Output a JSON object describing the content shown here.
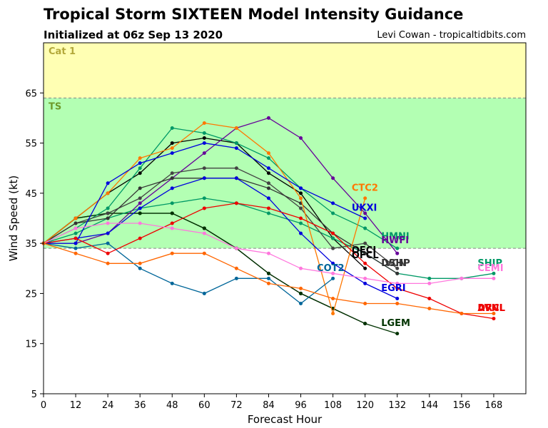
{
  "header": {
    "title": "Tropical Storm SIXTEEN Model Intensity Guidance",
    "subtitle": "Initialized at 06z Sep 13 2020",
    "credit": "Levi Cowan - tropicaltidbits.com"
  },
  "chart_data": {
    "type": "line",
    "title": "Tropical Storm SIXTEEN Model Intensity Guidance",
    "subtitle": "Initialized at 06z Sep 13 2020",
    "xlabel": "Forecast Hour",
    "ylabel": "Wind Speed (kt)",
    "xlim": [
      0,
      180
    ],
    "ylim": [
      5,
      75
    ],
    "xticks": [
      0,
      12,
      24,
      36,
      48,
      60,
      72,
      84,
      96,
      108,
      120,
      132,
      144,
      156,
      168
    ],
    "yticks": [
      5,
      15,
      25,
      35,
      45,
      55,
      65
    ],
    "bands": [
      {
        "from": 34,
        "to": 64,
        "color": "#b3ffb3",
        "label": "TS",
        "label_color": "#6e9a2a"
      },
      {
        "from": 64,
        "to": 75,
        "color": "#ffffb3",
        "label": "Cat 1",
        "label_color": "#b3a83a"
      }
    ],
    "series": [
      {
        "name": "OFCI",
        "color": "#000000",
        "x": [
          0,
          12,
          24,
          36,
          48,
          60,
          72,
          84,
          96,
          108,
          120
        ],
        "y": [
          35,
          40,
          41,
          41,
          41,
          38,
          34,
          29,
          25,
          22,
          19
        ]
      },
      {
        "name": "OFCL",
        "color": "#000000",
        "x": [
          0,
          12,
          24,
          36,
          48,
          60,
          72,
          84,
          96,
          108,
          120
        ],
        "y": [
          35,
          40,
          45,
          49,
          55,
          56,
          55,
          49,
          45,
          36,
          30
        ]
      },
      {
        "name": "LGEM",
        "color": "#003300",
        "x": [
          0,
          12,
          24,
          36,
          48,
          60,
          72,
          84,
          96,
          108,
          120,
          132
        ],
        "y": [
          35,
          40,
          41,
          41,
          41,
          38,
          34,
          29,
          25,
          22,
          19,
          17
        ]
      },
      {
        "name": "SHIP",
        "color": "#009966",
        "x": [
          0,
          12,
          24,
          36,
          48,
          60,
          72,
          84,
          96,
          108,
          120,
          132,
          144,
          156,
          168
        ],
        "y": [
          35,
          37,
          40,
          42,
          43,
          44,
          43,
          41,
          39,
          36,
          33,
          29,
          28,
          28,
          29
        ]
      },
      {
        "name": "HMNI",
        "color": "#009966",
        "x": [
          0,
          12,
          24,
          36,
          48,
          60,
          72,
          84,
          96,
          108,
          120,
          132
        ],
        "y": [
          35,
          38,
          42,
          50,
          58,
          57,
          55,
          52,
          46,
          41,
          38,
          34
        ]
      },
      {
        "name": "HWFI",
        "color": "#660099",
        "x": [
          0,
          12,
          24,
          36,
          48,
          60,
          72,
          84,
          96,
          108,
          120,
          132
        ],
        "y": [
          35,
          35,
          37,
          43,
          48,
          53,
          58,
          60,
          56,
          48,
          41,
          33
        ]
      },
      {
        "name": "IVCN",
        "color": "#444444",
        "x": [
          0,
          12,
          24,
          36,
          48,
          60,
          72,
          84,
          96,
          108,
          120,
          132
        ],
        "y": [
          35,
          39,
          41,
          44,
          49,
          50,
          50,
          47,
          42,
          34,
          35,
          30
        ]
      },
      {
        "name": "DSHP",
        "color": "#333333",
        "x": [
          0,
          12,
          24,
          36,
          48,
          60,
          72,
          84,
          96,
          108,
          120,
          132
        ],
        "y": [
          35,
          39,
          40,
          46,
          48,
          48,
          48,
          46,
          43,
          37,
          33,
          29
        ]
      },
      {
        "name": "CTC2",
        "color": "#ff7700",
        "x": [
          0,
          12,
          24,
          36,
          48,
          60,
          72,
          84,
          96,
          108,
          120
        ],
        "y": [
          35,
          40,
          45,
          52,
          54,
          59,
          58,
          53,
          44,
          21,
          44
        ]
      },
      {
        "name": "UKXI",
        "color": "#0000dd",
        "x": [
          0,
          12,
          24,
          36,
          48,
          60,
          72,
          84,
          96,
          108,
          120
        ],
        "y": [
          35,
          35,
          47,
          51,
          53,
          55,
          54,
          50,
          46,
          43,
          40
        ]
      },
      {
        "name": "EGRI",
        "color": "#0000dd",
        "x": [
          0,
          12,
          24,
          36,
          48,
          60,
          72,
          84,
          96,
          108,
          120,
          132
        ],
        "y": [
          35,
          36,
          37,
          42,
          46,
          48,
          48,
          44,
          37,
          31,
          27,
          24
        ]
      },
      {
        "name": "COT2",
        "color": "#006699",
        "x": [
          0,
          12,
          24,
          36,
          48,
          60,
          72,
          84,
          96,
          108
        ],
        "y": [
          35,
          34,
          35,
          30,
          27,
          25,
          28,
          28,
          23,
          28
        ]
      },
      {
        "name": "AVNI",
        "color": "#ee0000",
        "x": [
          0,
          12,
          24,
          36,
          48,
          60,
          72,
          84,
          96,
          108,
          120,
          132,
          144,
          156,
          168
        ],
        "y": [
          35,
          36,
          33,
          36,
          39,
          42,
          43,
          42,
          40,
          37,
          31,
          26,
          24,
          21,
          20
        ]
      },
      {
        "name": "CEMI",
        "color": "#ff77dd",
        "x": [
          0,
          12,
          24,
          36,
          48,
          60,
          72,
          84,
          96,
          108,
          120,
          132,
          144,
          156,
          168
        ],
        "y": [
          35,
          38,
          39,
          39,
          38,
          37,
          34,
          33,
          30,
          29,
          28,
          27,
          27,
          28,
          28
        ]
      },
      {
        "name": "DRCL",
        "color": "#ff6600",
        "x": [
          0,
          12,
          24,
          36,
          48,
          60,
          72,
          84,
          96,
          108,
          120,
          132,
          144,
          156,
          168
        ],
        "y": [
          35,
          33,
          31,
          31,
          33,
          33,
          30,
          27,
          26,
          24,
          23,
          23,
          22,
          21,
          21
        ]
      }
    ],
    "labels": [
      {
        "text": "HMNI",
        "x": 126,
        "y": 35.8,
        "color": "#009966"
      },
      {
        "text": "HWFI",
        "x": 126,
        "y": 35.0,
        "color": "#660099"
      },
      {
        "text": "CTC2",
        "x": 115,
        "y": 45.5,
        "color": "#ff7700"
      },
      {
        "text": "UKXI",
        "x": 115,
        "y": 41.5,
        "color": "#0000dd"
      },
      {
        "text": "OFCI",
        "x": 115,
        "y": 33.0,
        "color": "#000000"
      },
      {
        "text": "OFCL",
        "x": 115,
        "y": 32.0,
        "color": "#000000"
      },
      {
        "text": "IVCN",
        "x": 126,
        "y": 30.5,
        "color": "#444444"
      },
      {
        "text": "DSHP",
        "x": 126,
        "y": 30.5,
        "color": "#333333"
      },
      {
        "text": "COT2",
        "x": 102,
        "y": 29.5,
        "color": "#006699"
      },
      {
        "text": "EGRI",
        "x": 126,
        "y": 25.5,
        "color": "#0000dd"
      },
      {
        "text": "LGEM",
        "x": 126,
        "y": 18.5,
        "color": "#003300"
      },
      {
        "text": "SHIP",
        "x": 162,
        "y": 30.5,
        "color": "#009966"
      },
      {
        "text": "CEMI",
        "x": 162,
        "y": 29.5,
        "color": "#ff77dd"
      },
      {
        "text": "AVNI",
        "x": 162,
        "y": 21.5,
        "color": "#ee0000"
      },
      {
        "text": "DRCL",
        "x": 162,
        "y": 21.5,
        "color": "#ee0000"
      }
    ]
  }
}
